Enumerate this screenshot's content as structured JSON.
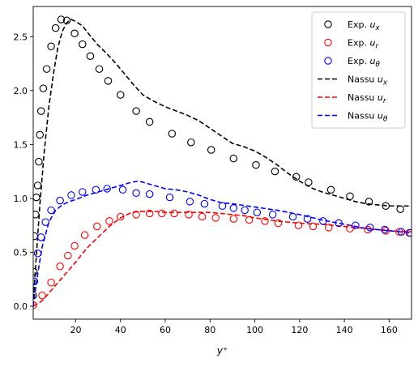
{
  "chart_data": {
    "type": "scatter",
    "title": "",
    "xlabel": "y⁺",
    "ylabel": "",
    "xlim": [
      1,
      170
    ],
    "ylim": [
      -0.12,
      2.78
    ],
    "grid": false,
    "legend_position": "top-right",
    "x_ticks": [
      20,
      40,
      60,
      80,
      100,
      120,
      140,
      160
    ],
    "y_ticks": [
      0.0,
      0.5,
      1.0,
      1.5,
      2.0,
      2.5
    ],
    "x_tick_labels": [
      "20",
      "40",
      "60",
      "80",
      "100",
      "120",
      "140",
      "160"
    ],
    "y_tick_labels": [
      "0.0",
      "0.5",
      "1.0",
      "1.5",
      "2.0",
      "2.5"
    ],
    "series": [
      {
        "name": "Exp. u_x",
        "kind": "markers",
        "color": "#000000",
        "x": [
          1.0,
          1.2,
          1.5,
          2.0,
          2.4,
          3.0,
          3.5,
          4.0,
          4.5,
          5.5,
          7.0,
          9.0,
          11.0,
          13.5,
          16.0,
          19.5,
          23.0,
          26.5,
          30.5,
          34.5,
          40.0,
          47.0,
          53.0,
          63.0,
          71.5,
          80.5,
          90.5,
          100.5,
          109.0,
          118.5,
          124.0,
          134.0,
          142.5,
          151.0,
          158.5,
          165.0
        ],
        "y": [
          0.1,
          0.32,
          0.65,
          0.85,
          1.01,
          1.12,
          1.34,
          1.59,
          1.81,
          2.02,
          2.2,
          2.41,
          2.58,
          2.66,
          2.65,
          2.53,
          2.43,
          2.32,
          2.2,
          2.09,
          1.96,
          1.81,
          1.71,
          1.6,
          1.52,
          1.45,
          1.37,
          1.31,
          1.25,
          1.2,
          1.15,
          1.08,
          1.02,
          0.97,
          0.93,
          0.9
        ]
      },
      {
        "name": "Exp. u_r",
        "kind": "markers",
        "color": "#ff0000",
        "x": [
          1.0,
          5.0,
          9.0,
          13.0,
          16.5,
          19.5,
          24.0,
          29.5,
          35.0,
          40.0,
          47.0,
          53.0,
          58.5,
          64.0,
          70.5,
          76.5,
          82.5,
          90.5,
          97.5,
          104.5,
          110.5,
          119.5,
          126.0,
          133.0,
          142.5,
          150.5,
          158.5,
          164.5,
          169.0
        ],
        "y": [
          0.01,
          0.1,
          0.22,
          0.37,
          0.47,
          0.56,
          0.66,
          0.74,
          0.79,
          0.83,
          0.85,
          0.86,
          0.86,
          0.86,
          0.85,
          0.83,
          0.82,
          0.81,
          0.8,
          0.79,
          0.77,
          0.75,
          0.74,
          0.73,
          0.72,
          0.71,
          0.7,
          0.69,
          0.68
        ]
      },
      {
        "name": "Exp. u_θ",
        "kind": "markers",
        "color": "#0000ff",
        "x": [
          1.5,
          3.0,
          4.5,
          6.5,
          9.0,
          13.0,
          18.0,
          23.0,
          29.0,
          34.0,
          41.0,
          47.0,
          53.0,
          62.0,
          71.0,
          77.5,
          85.5,
          90.5,
          95.5,
          101.0,
          108.0,
          117.0,
          123.5,
          130.5,
          137.5,
          145.0,
          151.5,
          158.0,
          165.5,
          169.5
        ],
        "y": [
          0.23,
          0.49,
          0.64,
          0.78,
          0.89,
          0.98,
          1.03,
          1.06,
          1.08,
          1.09,
          1.08,
          1.05,
          1.04,
          1.01,
          0.97,
          0.95,
          0.93,
          0.91,
          0.89,
          0.87,
          0.85,
          0.83,
          0.81,
          0.79,
          0.77,
          0.75,
          0.73,
          0.71,
          0.69,
          0.68
        ]
      },
      {
        "name": "Nassu u_x",
        "kind": "dashed_line",
        "color": "#000000",
        "x": [
          1,
          2,
          4,
          6,
          8,
          10,
          12,
          14,
          16,
          18,
          20,
          23,
          26,
          30,
          34,
          38,
          42,
          46,
          50,
          55,
          60,
          65,
          70,
          75,
          80,
          85,
          90,
          95,
          100,
          105,
          110,
          115,
          120,
          125,
          130,
          135,
          140,
          145,
          150,
          155,
          160,
          165,
          170
        ],
        "y": [
          0.0,
          0.35,
          0.95,
          1.45,
          1.85,
          2.15,
          2.4,
          2.55,
          2.63,
          2.66,
          2.64,
          2.6,
          2.52,
          2.42,
          2.34,
          2.25,
          2.15,
          2.05,
          1.96,
          1.9,
          1.85,
          1.81,
          1.77,
          1.72,
          1.65,
          1.58,
          1.51,
          1.48,
          1.44,
          1.38,
          1.31,
          1.23,
          1.16,
          1.1,
          1.06,
          1.03,
          1.0,
          0.97,
          0.95,
          0.94,
          0.93,
          0.93,
          0.93
        ]
      },
      {
        "name": "Nassu u_r",
        "kind": "dashed_line",
        "color": "#ff0000",
        "x": [
          1,
          5,
          10,
          15,
          20,
          25,
          30,
          35,
          40,
          45,
          50,
          55,
          60,
          65,
          70,
          75,
          80,
          85,
          90,
          95,
          100,
          110,
          120,
          130,
          140,
          150,
          160,
          170
        ],
        "y": [
          0.0,
          0.05,
          0.17,
          0.29,
          0.41,
          0.54,
          0.64,
          0.74,
          0.82,
          0.87,
          0.88,
          0.88,
          0.87,
          0.87,
          0.87,
          0.87,
          0.87,
          0.86,
          0.85,
          0.84,
          0.82,
          0.79,
          0.77,
          0.76,
          0.74,
          0.72,
          0.7,
          0.69
        ]
      },
      {
        "name": "Nassu u_θ",
        "kind": "dashed_line",
        "color": "#0000ff",
        "x": [
          1,
          3,
          5,
          8,
          11,
          14,
          17,
          20,
          25,
          30,
          35,
          40,
          45,
          48,
          50,
          55,
          60,
          65,
          70,
          75,
          80,
          85,
          90,
          100,
          110,
          120,
          130,
          140,
          150,
          160,
          170
        ],
        "y": [
          0.0,
          0.3,
          0.55,
          0.78,
          0.89,
          0.94,
          0.97,
          0.99,
          1.03,
          1.06,
          1.09,
          1.12,
          1.15,
          1.16,
          1.15,
          1.12,
          1.09,
          1.08,
          1.06,
          1.03,
          0.99,
          0.96,
          0.95,
          0.92,
          0.89,
          0.85,
          0.8,
          0.76,
          0.72,
          0.7,
          0.68
        ]
      }
    ]
  }
}
